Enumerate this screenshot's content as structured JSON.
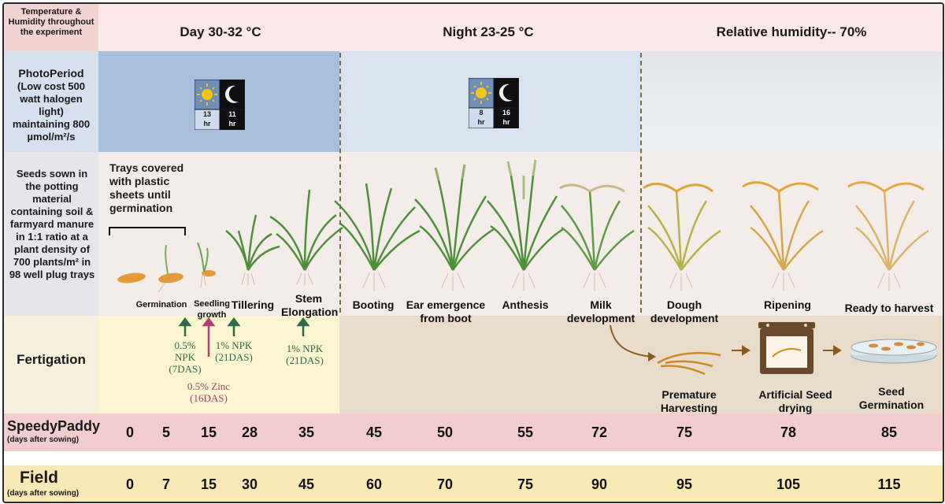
{
  "header": {
    "label": "Temperature & Humidity throughout the experiment",
    "day": "Day  30-32 °C",
    "night": "Night  23-25 °C",
    "humidity": "Relative humidity-- 70%"
  },
  "photoperiod": {
    "label_title": "PhotoPeriod",
    "label_body": "(Low cost 500 watt halogen light) maintaining 800 µmol/m²/s",
    "panel1": {
      "day_hr": "13",
      "night_hr": "11",
      "unit": "hr"
    },
    "panel2": {
      "day_hr": "8",
      "night_hr": "16",
      "unit": "hr"
    }
  },
  "seeds": {
    "label": "Seeds sown in the potting material containing soil & farmyard manure in 1:1 ratio at a plant density of 700 plants/m² in 98 well plug trays",
    "tray_note": "Trays covered with plastic sheets until germination"
  },
  "stages": {
    "germination": "Germination",
    "seedling": "Seedling growth",
    "tillering": "Tillering",
    "stem": "Stem Elongation",
    "booting": "Booting",
    "ear": "Ear emergence from boot",
    "anthesis": "Anthesis",
    "milk": "Milk development",
    "dough": "Dough development",
    "ripening": "Ripening",
    "ready": "Ready to harvest"
  },
  "fertigation": {
    "label": "Fertigation",
    "npk1": "0.5% NPK (7DAS)",
    "zinc": "0.5% Zinc (16DAS)",
    "npk2": "1% NPK (21DAS)",
    "npk3": "1% NPK (21DAS)",
    "premature": "Premature Harvesting",
    "drying": "Artificial Seed drying",
    "germ": "Seed Germination"
  },
  "speedypaddy": {
    "title": "SpeedyPaddy",
    "subtitle": "(days after sowing)",
    "days": [
      "0",
      "5",
      "15",
      "28",
      "35",
      "45",
      "50",
      "55",
      "72",
      "75",
      "78",
      "85"
    ]
  },
  "field": {
    "title": "Field",
    "subtitle": "(days after sowing)",
    "days": [
      "0",
      "7",
      "15",
      "30",
      "45",
      "60",
      "70",
      "75",
      "90",
      "95",
      "105",
      "115"
    ]
  },
  "colors": {
    "header_label_bg": "#f4d4d2",
    "header_bg": "#fbe9e8",
    "photo_day_bg": "#a9c0dc",
    "photo_night_bg": "#d9e3ef",
    "seeds_bg": "#f3ece9",
    "fert_bg": "#fbf5d0",
    "fert_right_bg": "#e9dccb",
    "speedy_bg": "#f3ccd0",
    "field_bg": "#f8e9b5",
    "npk_color": "#2e6b4a",
    "zinc_color": "#b3406e",
    "plant_green": "#4f8f3a",
    "plant_gold": "#d9a53a"
  }
}
